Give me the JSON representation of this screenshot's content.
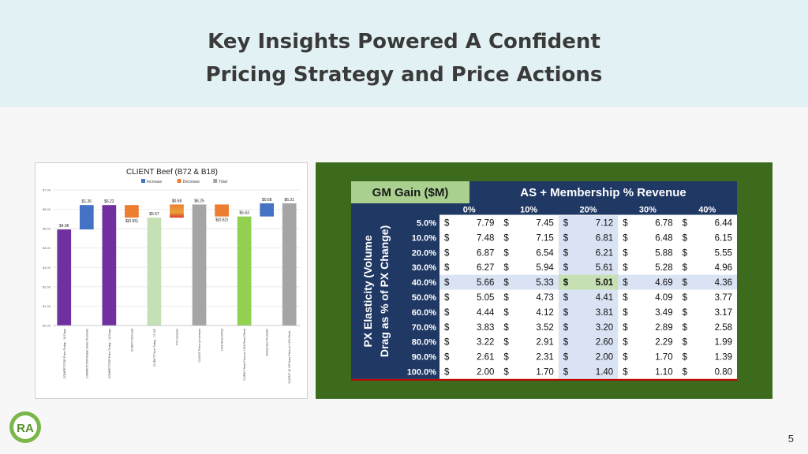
{
  "slide": {
    "title_line1": "Key Insights Powered A Confident",
    "title_line2": "Pricing Strategy and Price Actions",
    "page_number": "5",
    "logo_text": "RA"
  },
  "chart_data": [
    {
      "type": "bar",
      "subtype": "waterfall",
      "title": "CLIENT Beef (B72 & B18)",
      "legend": [
        "Increase",
        "Decrease",
        "Total"
      ],
      "legend_position": "top",
      "colors": {
        "Increase": "#4472c4",
        "Decrease": "#ed7d31",
        "Total": "#a5a5a5"
      },
      "ylim": [
        0,
        7
      ],
      "yticks": [
        "$0.00",
        "$1.00",
        "$2.00",
        "$3.00",
        "$4.00",
        "$5.00",
        "$6.00",
        "$7.00"
      ],
      "grid": true,
      "bars": [
        {
          "category": "COMPETITOR Price Today - 16 Days",
          "base": 0,
          "value": 4.96,
          "label": "$4.96",
          "color": "#7030a0"
        },
        {
          "category": "COMPETITOR Retail Order Premium",
          "base": 4.96,
          "value": 1.26,
          "label": "$1.26",
          "color": "#4472c4"
        },
        {
          "category": "COMPETITOR Price Today - 16 Days",
          "base": 0,
          "value": 6.22,
          "label": "$6.22",
          "color": "#7030a0"
        },
        {
          "category": "CLIENT Discount",
          "base": 5.57,
          "value": 0.65,
          "label": "$(0.65)",
          "color": "#ed7d31"
        },
        {
          "category": "CLIENT Price Today - 72 OZ",
          "base": 0,
          "value": 5.57,
          "label": "$5.57",
          "color": "#c5e0b4"
        },
        {
          "category": "PX Increase",
          "base": 5.57,
          "value": 0.68,
          "label": "$0.68",
          "color": "#ed7d31",
          "gradient": true
        },
        {
          "category": "CLIENT Price w Increase",
          "base": 0,
          "value": 6.25,
          "label": "$6.25",
          "color": "#a5a5a5"
        },
        {
          "category": "10% Rival Offset",
          "base": 5.63,
          "value": 0.62,
          "label": "$(0.62)",
          "color": "#ed7d31"
        },
        {
          "category": "CLIENT New Price w/ 10% Rival Offset",
          "base": 0,
          "value": 5.63,
          "label": "$5.63",
          "color": "#92d050"
        },
        {
          "category": "Retail Size Premium",
          "base": 5.63,
          "value": 0.68,
          "label": "$0.68",
          "color": "#4472c4"
        },
        {
          "category": "CLIENT 18 OZ New Price w/ 10% Rival...",
          "base": 0,
          "value": 6.31,
          "label": "$6.31",
          "color": "#a5a5a5"
        }
      ]
    },
    {
      "type": "table",
      "corner_label": "GM Gain ($M)",
      "column_header": "AS + Membership % Revenue",
      "row_header": "PX Elasticity (Volume Drag as % of PX Change)",
      "row_header_line1": "PX Elasticity (Volume",
      "row_header_line2": "Drag as % of PX Change)",
      "columns": [
        "0%",
        "10%",
        "20%",
        "30%",
        "40%"
      ],
      "rows": [
        "5.0%",
        "10.0%",
        "20.0%",
        "30.0%",
        "40.0%",
        "50.0%",
        "60.0%",
        "70.0%",
        "80.0%",
        "90.0%",
        "100.0%"
      ],
      "currency_symbol": "$",
      "values": [
        [
          "7.79",
          "7.45",
          "7.12",
          "6.78",
          "6.44"
        ],
        [
          "7.48",
          "7.15",
          "6.81",
          "6.48",
          "6.15"
        ],
        [
          "6.87",
          "6.54",
          "6.21",
          "5.88",
          "5.55"
        ],
        [
          "6.27",
          "5.94",
          "5.61",
          "5.28",
          "4.96"
        ],
        [
          "5.66",
          "5.33",
          "5.01",
          "4.69",
          "4.36"
        ],
        [
          "5.05",
          "4.73",
          "4.41",
          "4.09",
          "3.77"
        ],
        [
          "4.44",
          "4.12",
          "3.81",
          "3.49",
          "3.17"
        ],
        [
          "3.83",
          "3.52",
          "3.20",
          "2.89",
          "2.58"
        ],
        [
          "3.22",
          "2.91",
          "2.60",
          "2.29",
          "1.99"
        ],
        [
          "2.61",
          "2.31",
          "2.00",
          "1.70",
          "1.39"
        ],
        [
          "2.00",
          "1.70",
          "1.40",
          "1.10",
          "0.80"
        ]
      ],
      "highlight_row": "40.0%",
      "highlight_column": "20%",
      "highlight_cell": {
        "row": "40.0%",
        "column": "20%",
        "value": "5.01"
      },
      "colors": {
        "header_navy": "#1f3864",
        "corner_green": "#a9d08e",
        "highlight_band": "#dae3f3",
        "highlight_cell": "#c6e0b4",
        "panel_green": "#3d6b1e",
        "bottom_rule": "#c00000"
      }
    }
  ]
}
